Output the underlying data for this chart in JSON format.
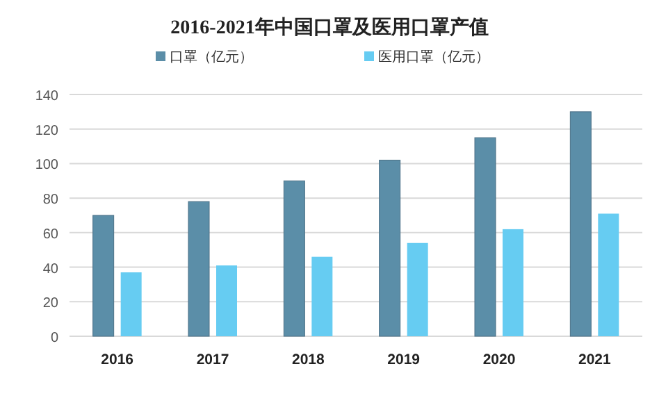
{
  "chart_data": {
    "type": "bar",
    "title": "2016-2021年中国口罩及医用口罩产值",
    "categories": [
      "2016",
      "2017",
      "2018",
      "2019",
      "2020",
      "2021"
    ],
    "series": [
      {
        "name": "口罩（亿元）",
        "color": "#5b8ea8",
        "values": [
          70,
          78,
          90,
          102,
          115,
          130
        ]
      },
      {
        "name": "医用口罩（亿元）",
        "color": "#66ccf2",
        "values": [
          37,
          41,
          46,
          54,
          62,
          71
        ]
      }
    ],
    "ylim": [
      0,
      140
    ],
    "yticks": [
      0,
      20,
      40,
      60,
      80,
      100,
      120,
      140
    ],
    "grid": "y",
    "legend": "top"
  }
}
